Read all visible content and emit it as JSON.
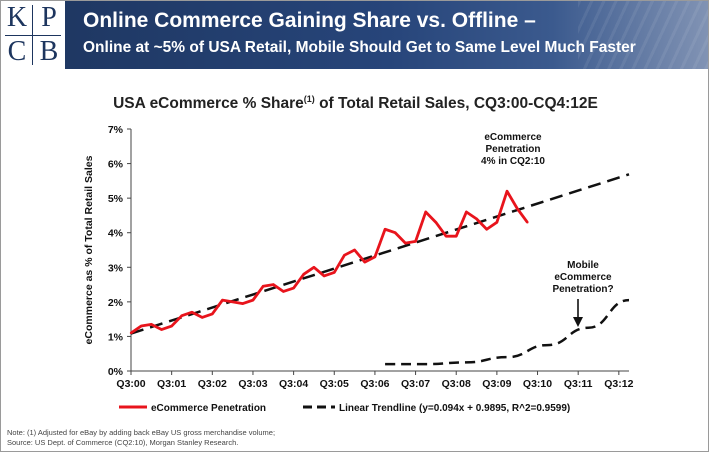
{
  "header": {
    "logo_letters": [
      "K",
      "P",
      "C",
      "B"
    ],
    "title": "Online Commerce Gaining Share vs. Offline –",
    "subtitle": "Online at ~5% of USA Retail, Mobile Should Get to Same Level Much Faster",
    "bg_color": "#1d355e"
  },
  "chart_data": {
    "type": "line",
    "title_main": "USA eCommerce % Share",
    "title_sup": "(1)",
    "title_rest": " of Total Retail Sales, CQ3:00-CQ4:12E",
    "ylabel": "eCommerce as % of Total Retail Sales",
    "ylim": [
      0,
      7
    ],
    "yticks": [
      "0%",
      "1%",
      "2%",
      "3%",
      "4%",
      "5%",
      "6%",
      "7%"
    ],
    "xlim": [
      1,
      50
    ],
    "x_tick_positions": [
      1,
      5,
      9,
      13,
      17,
      21,
      25,
      29,
      33,
      37,
      41,
      45,
      49
    ],
    "x_tick_labels": [
      "Q3:00",
      "Q3:01",
      "Q3:02",
      "Q3:03",
      "Q3:04",
      "Q3:05",
      "Q3:06",
      "Q3:07",
      "Q3:08",
      "Q3:09",
      "Q3:10",
      "Q3:11",
      "Q3:12"
    ],
    "series": [
      {
        "name": "eCommerce Penetration",
        "color": "#e8141c",
        "x": [
          1,
          2,
          3,
          4,
          5,
          6,
          7,
          8,
          9,
          10,
          11,
          12,
          13,
          14,
          15,
          16,
          17,
          18,
          19,
          20,
          21,
          22,
          23,
          24,
          25,
          26,
          27,
          28,
          29,
          30,
          31,
          32,
          33,
          34,
          35,
          36,
          37,
          38,
          39,
          40
        ],
        "values": [
          1.1,
          1.3,
          1.35,
          1.2,
          1.3,
          1.6,
          1.7,
          1.55,
          1.65,
          2.05,
          2.0,
          1.95,
          2.05,
          2.45,
          2.5,
          2.3,
          2.4,
          2.8,
          3.0,
          2.75,
          2.85,
          3.35,
          3.5,
          3.15,
          3.3,
          4.1,
          4.0,
          3.7,
          3.75,
          4.6,
          4.3,
          3.9,
          3.9,
          4.6,
          4.4,
          4.1,
          4.3,
          5.2,
          4.7,
          4.3
        ]
      },
      {
        "name": "Linear Trendline (y=0.094x + 0.9895, R^2=0.9599)",
        "color": "#111111",
        "slope": 0.094,
        "intercept": 0.9895,
        "x_range": [
          1,
          50
        ]
      },
      {
        "name": "Mobile eCommerce Penetration",
        "color": "#111111",
        "x": [
          26,
          30,
          34,
          38,
          42,
          46,
          50
        ],
        "values": [
          0.2,
          0.2,
          0.25,
          0.4,
          0.75,
          1.25,
          2.05
        ]
      }
    ],
    "annotations": [
      {
        "lines": [
          "eCommerce",
          "Penetration",
          "4% in CQ2:10"
        ]
      },
      {
        "lines": [
          "Mobile",
          "eCommerce",
          "Penetration?"
        ]
      }
    ],
    "legend": {
      "position": "bottom",
      "items": [
        "eCommerce Penetration",
        "Linear Trendline (y=0.094x + 0.9895, R^2=0.9599)"
      ]
    }
  },
  "notes": {
    "line1": "Note: (1) Adjusted for eBay by adding back eBay US gross merchandise volume;",
    "line2": "Source: US Dept. of Commerce (CQ2:10), Morgan Stanley Research."
  }
}
